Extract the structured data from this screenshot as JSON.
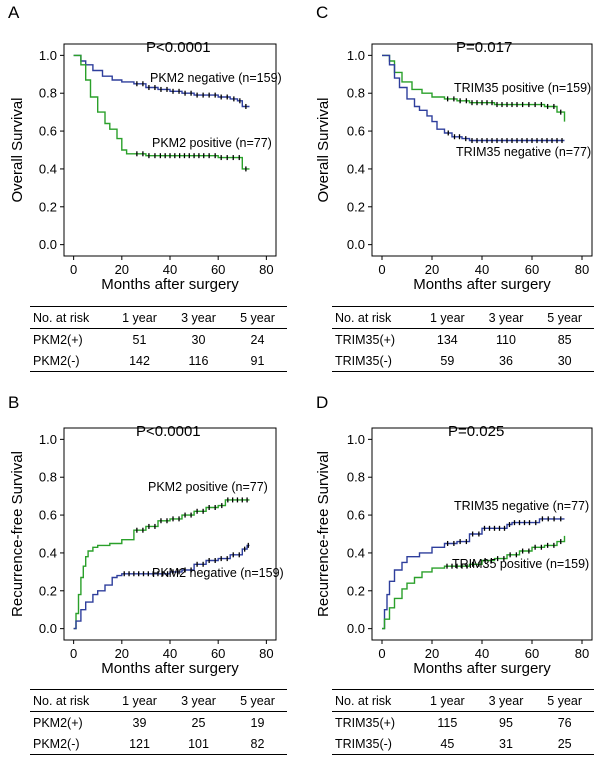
{
  "figure": {
    "panels": [
      {
        "letter": "A",
        "pvalue": "P<0.0001",
        "ylabel": "Overall Survival",
        "xlabel": "Months after surgery",
        "curve_labels": [
          "PKM2 negative (n=159)",
          "PKM2 positive (n=77)"
        ],
        "table": {
          "header": [
            "No. at risk",
            "1 year",
            "3 year",
            "5 year"
          ],
          "rows": [
            [
              "PKM2(+)",
              "51",
              "30",
              "24"
            ],
            [
              "PKM2(-)",
              "142",
              "116",
              "91"
            ]
          ]
        }
      },
      {
        "letter": "C",
        "pvalue": "P=0.017",
        "ylabel": "Overall Survival",
        "xlabel": "Months after surgery",
        "curve_labels": [
          "TRIM35 positive (n=159)",
          "TRIM35 negative (n=77)"
        ],
        "table": {
          "header": [
            "No. at risk",
            "1 year",
            "3 year",
            "5 year"
          ],
          "rows": [
            [
              "TRIM35(+)",
              "134",
              "110",
              "85"
            ],
            [
              "TRIM35(-)",
              "59",
              "36",
              "30"
            ]
          ]
        }
      },
      {
        "letter": "B",
        "pvalue": "P<0.0001",
        "ylabel": "Recurrence-free Survival",
        "xlabel": "Months after surgery",
        "curve_labels": [
          "PKM2 positive (n=77)",
          "PKM2 negative (n=159)"
        ],
        "table": {
          "header": [
            "No. at risk",
            "1 year",
            "3 year",
            "5 year"
          ],
          "rows": [
            [
              "PKM2(+)",
              "39",
              "25",
              "19"
            ],
            [
              "PKM2(-)",
              "121",
              "101",
              "82"
            ]
          ]
        }
      },
      {
        "letter": "D",
        "pvalue": "P=0.025",
        "ylabel": "Recurrence-free Survival",
        "xlabel": "Months after surgery",
        "curve_labels": [
          "TRIM35 negative (n=77)",
          "TRIM35 positive (n=159)"
        ],
        "table": {
          "header": [
            "No. at risk",
            "1 year",
            "3 year",
            "5 year"
          ],
          "rows": [
            [
              "TRIM35(+)",
              "115",
              "95",
              "76"
            ],
            [
              "TRIM35(-)",
              "45",
              "31",
              "25"
            ]
          ]
        }
      }
    ]
  },
  "chart_data": [
    {
      "type": "line",
      "panel": "A",
      "title": "P<0.0001",
      "xlabel": "Months after surgery",
      "ylabel": "Overall Survival",
      "xlim": [
        0,
        80
      ],
      "ylim": [
        0,
        1
      ],
      "xticks": [
        "0",
        "20",
        "40",
        "60",
        "80"
      ],
      "yticks": [
        "0.0",
        "0.2",
        "0.4",
        "0.6",
        "0.8",
        "1.0"
      ],
      "grid": false,
      "series": [
        {
          "name": "PKM2 negative (n=159)",
          "color": "#2e3e9c",
          "x": [
            0,
            3,
            5,
            8,
            12,
            16,
            20,
            25,
            30,
            35,
            40,
            45,
            50,
            55,
            60,
            65,
            68,
            70,
            73
          ],
          "y": [
            1.0,
            0.97,
            0.95,
            0.92,
            0.89,
            0.87,
            0.86,
            0.85,
            0.83,
            0.82,
            0.81,
            0.8,
            0.79,
            0.79,
            0.78,
            0.77,
            0.76,
            0.73,
            0.73
          ]
        },
        {
          "name": "PKM2 positive (n=77)",
          "color": "#2aa02a",
          "x": [
            0,
            3,
            5,
            7,
            10,
            13,
            15,
            18,
            20,
            22,
            25,
            30,
            35,
            45,
            55,
            60,
            65,
            70,
            73
          ],
          "y": [
            1.0,
            0.95,
            0.87,
            0.78,
            0.7,
            0.64,
            0.61,
            0.56,
            0.5,
            0.48,
            0.48,
            0.47,
            0.47,
            0.47,
            0.47,
            0.46,
            0.46,
            0.4,
            0.4
          ]
        }
      ]
    },
    {
      "type": "line",
      "panel": "C",
      "title": "P=0.017",
      "xlabel": "Months after surgery",
      "ylabel": "Overall Survival",
      "xlim": [
        0,
        80
      ],
      "ylim": [
        0,
        1
      ],
      "xticks": [
        "0",
        "20",
        "40",
        "60",
        "80"
      ],
      "yticks": [
        "0.0",
        "0.2",
        "0.4",
        "0.6",
        "0.8",
        "1.0"
      ],
      "grid": false,
      "series": [
        {
          "name": "TRIM35 positive (n=159)",
          "color": "#2aa02a",
          "x": [
            0,
            3,
            5,
            8,
            12,
            16,
            20,
            25,
            30,
            35,
            45,
            55,
            60,
            65,
            70,
            73
          ],
          "y": [
            1.0,
            0.97,
            0.91,
            0.86,
            0.82,
            0.8,
            0.78,
            0.77,
            0.76,
            0.75,
            0.74,
            0.74,
            0.74,
            0.73,
            0.7,
            0.65
          ]
        },
        {
          "name": "TRIM35 negative (n=77)",
          "color": "#2e3e9c",
          "x": [
            0,
            3,
            5,
            7,
            10,
            13,
            15,
            18,
            20,
            22,
            25,
            28,
            32,
            35,
            45,
            55,
            65,
            73
          ],
          "y": [
            1.0,
            0.95,
            0.88,
            0.83,
            0.77,
            0.73,
            0.71,
            0.68,
            0.65,
            0.61,
            0.59,
            0.57,
            0.56,
            0.55,
            0.55,
            0.55,
            0.55,
            0.55
          ]
        }
      ]
    },
    {
      "type": "line",
      "panel": "B",
      "title": "P<0.0001",
      "xlabel": "Months after surgery",
      "ylabel": "Recurrence-free Survival",
      "xlim": [
        0,
        80
      ],
      "ylim": [
        0,
        1
      ],
      "xticks": [
        "0",
        "20",
        "40",
        "60",
        "80"
      ],
      "yticks": [
        "0.0",
        "0.2",
        "0.4",
        "0.6",
        "0.8",
        "1.0"
      ],
      "grid": false,
      "series": [
        {
          "name": "PKM2 positive (n=77)",
          "color": "#2aa02a",
          "x": [
            0,
            1,
            2,
            3,
            4,
            5,
            6,
            8,
            10,
            15,
            20,
            25,
            30,
            35,
            40,
            45,
            50,
            55,
            60,
            63,
            73
          ],
          "y": [
            0,
            0.08,
            0.18,
            0.27,
            0.33,
            0.38,
            0.41,
            0.43,
            0.44,
            0.45,
            0.47,
            0.52,
            0.54,
            0.57,
            0.58,
            0.6,
            0.62,
            0.64,
            0.65,
            0.68,
            0.68
          ]
        },
        {
          "name": "PKM2 negative (n=159)",
          "color": "#2e3e9c",
          "x": [
            0,
            1,
            3,
            5,
            8,
            10,
            13,
            16,
            18,
            20,
            30,
            40,
            45,
            50,
            55,
            60,
            65,
            70,
            72,
            73
          ],
          "y": [
            0,
            0.04,
            0.1,
            0.14,
            0.18,
            0.2,
            0.23,
            0.27,
            0.28,
            0.29,
            0.29,
            0.3,
            0.31,
            0.34,
            0.36,
            0.37,
            0.39,
            0.42,
            0.44,
            0.44
          ]
        }
      ]
    },
    {
      "type": "line",
      "panel": "D",
      "title": "P=0.025",
      "xlabel": "Months after surgery",
      "ylabel": "Recurrence-free Survival",
      "xlim": [
        0,
        80
      ],
      "ylim": [
        0,
        1
      ],
      "xticks": [
        "0",
        "20",
        "40",
        "60",
        "80"
      ],
      "yticks": [
        "0.0",
        "0.2",
        "0.4",
        "0.6",
        "0.8",
        "1.0"
      ],
      "grid": false,
      "series": [
        {
          "name": "TRIM35 negative (n=77)",
          "color": "#2e3e9c",
          "x": [
            0,
            1,
            2,
            3,
            5,
            8,
            10,
            15,
            20,
            25,
            30,
            35,
            40,
            50,
            52,
            60,
            63,
            70,
            73
          ],
          "y": [
            0,
            0.1,
            0.18,
            0.25,
            0.31,
            0.35,
            0.38,
            0.4,
            0.43,
            0.45,
            0.46,
            0.5,
            0.53,
            0.55,
            0.56,
            0.56,
            0.58,
            0.58,
            0.58
          ]
        },
        {
          "name": "TRIM35 positive (n=159)",
          "color": "#2aa02a",
          "x": [
            0,
            1,
            3,
            5,
            8,
            10,
            13,
            16,
            20,
            25,
            35,
            40,
            45,
            50,
            55,
            60,
            65,
            70,
            73
          ],
          "y": [
            0,
            0.05,
            0.11,
            0.16,
            0.21,
            0.24,
            0.27,
            0.3,
            0.32,
            0.33,
            0.34,
            0.36,
            0.37,
            0.39,
            0.41,
            0.43,
            0.44,
            0.46,
            0.49
          ]
        }
      ]
    }
  ]
}
